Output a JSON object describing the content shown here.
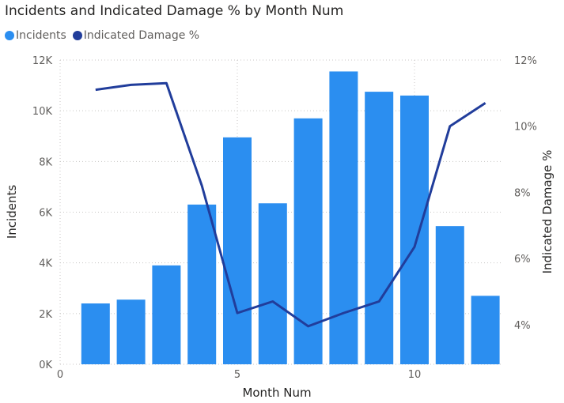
{
  "chart_data": {
    "type": "bar",
    "title": "Incidents and Indicated Damage % by Month Num",
    "xlabel": "Month Num",
    "ylabel": "Incidents",
    "y2label": "Indicated Damage %",
    "legend_position": "top-left",
    "grid": true,
    "x": [
      1,
      2,
      3,
      4,
      5,
      6,
      7,
      8,
      9,
      10,
      11,
      12
    ],
    "xlim": [
      0,
      12.5
    ],
    "x_ticks": [
      0,
      5,
      10
    ],
    "x_tick_labels": [
      "0",
      "5",
      "10"
    ],
    "ylim": [
      0,
      12000
    ],
    "y_ticks": [
      0,
      2000,
      4000,
      6000,
      8000,
      10000,
      12000
    ],
    "y_tick_labels": [
      "0K",
      "2K",
      "4K",
      "6K",
      "8K",
      "10K",
      "12K"
    ],
    "y2lim": [
      2.8,
      12
    ],
    "y2_ticks": [
      4,
      6,
      8,
      10,
      12
    ],
    "y2_tick_labels": [
      "4%",
      "6%",
      "8%",
      "10%",
      "12%"
    ],
    "series": [
      {
        "name": "Incidents",
        "type": "bar",
        "axis": "left",
        "color": "#2b8ef0",
        "values": [
          2400,
          2550,
          3900,
          6300,
          8950,
          6350,
          9700,
          11550,
          10750,
          10600,
          5450,
          2700
        ]
      },
      {
        "name": "Indicated Damage %",
        "type": "line",
        "axis": "right",
        "color": "#213d9b",
        "values": [
          11.1,
          11.25,
          11.3,
          8.2,
          4.35,
          4.7,
          3.95,
          4.35,
          4.7,
          6.35,
          10.0,
          10.7
        ]
      }
    ]
  }
}
